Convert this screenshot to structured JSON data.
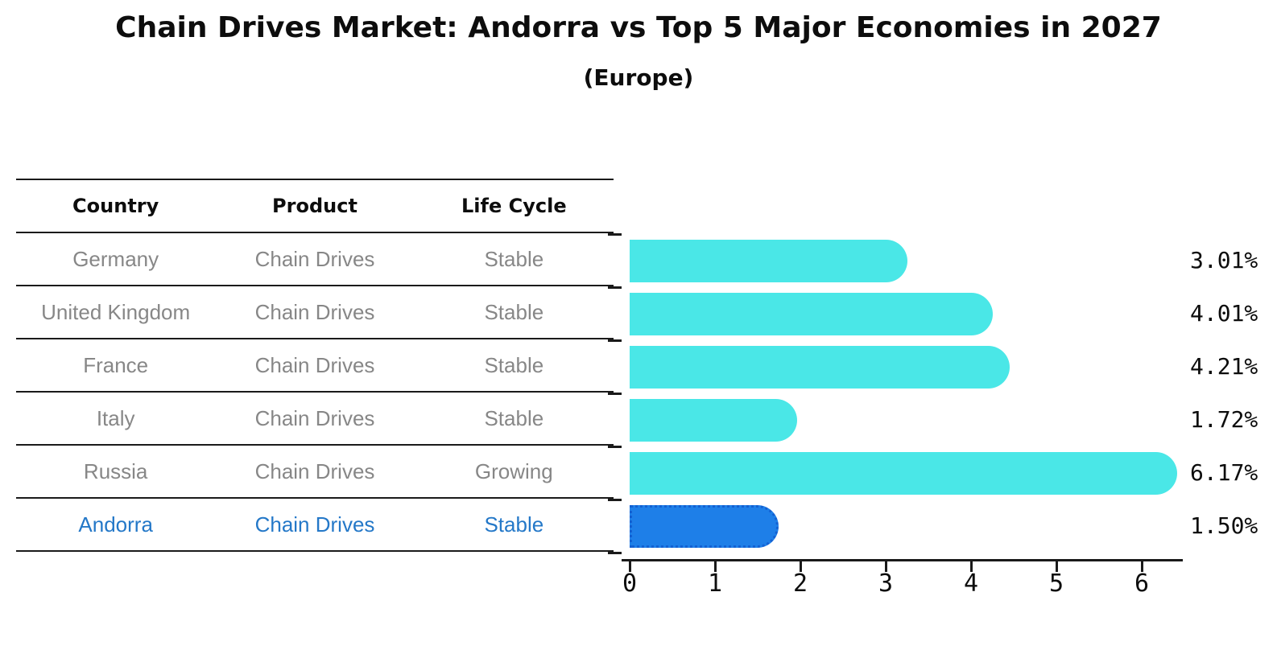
{
  "title": "Chain Drives Market: Andorra vs Top 5 Major Economies in 2027",
  "subtitle": "(Europe)",
  "table": {
    "headers": [
      "Country",
      "Product",
      "Life Cycle"
    ],
    "rows": [
      {
        "country": "Germany",
        "product": "Chain Drives",
        "life_cycle": "Stable",
        "highlight": false
      },
      {
        "country": "United Kingdom",
        "product": "Chain Drives",
        "life_cycle": "Stable",
        "highlight": false
      },
      {
        "country": "France",
        "product": "Chain Drives",
        "life_cycle": "Stable",
        "highlight": false
      },
      {
        "country": "Italy",
        "product": "Chain Drives",
        "life_cycle": "Stable",
        "highlight": false
      },
      {
        "country": "Russia",
        "product": "Chain Drives",
        "life_cycle": "Growing",
        "highlight": false
      },
      {
        "country": "Andorra",
        "product": "Chain Drives",
        "life_cycle": "Stable",
        "highlight": true
      }
    ]
  },
  "chart_data": {
    "type": "bar",
    "orientation": "horizontal",
    "title": "Chain Drives Market: Andorra vs Top 5 Major Economies in 2027",
    "subtitle": "(Europe)",
    "categories": [
      "Germany",
      "United Kingdom",
      "France",
      "Italy",
      "Russia",
      "Andorra"
    ],
    "values": [
      3.01,
      4.01,
      4.21,
      1.72,
      6.17,
      1.5
    ],
    "value_labels": [
      "3.01%",
      "4.01%",
      "4.21%",
      "1.72%",
      "6.17%",
      "1.50%"
    ],
    "xlim": [
      0,
      6.55
    ],
    "xticks": [
      "0",
      "1",
      "2",
      "3",
      "4",
      "5",
      "6"
    ],
    "grid": false,
    "legend": "none",
    "bar_color": "#4ae7e7",
    "highlight_index": 5,
    "highlight_bar_color": "#1e7fe8",
    "highlight_border_color": "#1361d2",
    "highlight_text_color": "#2478c8",
    "table_text_color": "#878787",
    "axis_color": "#1a1a1a"
  }
}
